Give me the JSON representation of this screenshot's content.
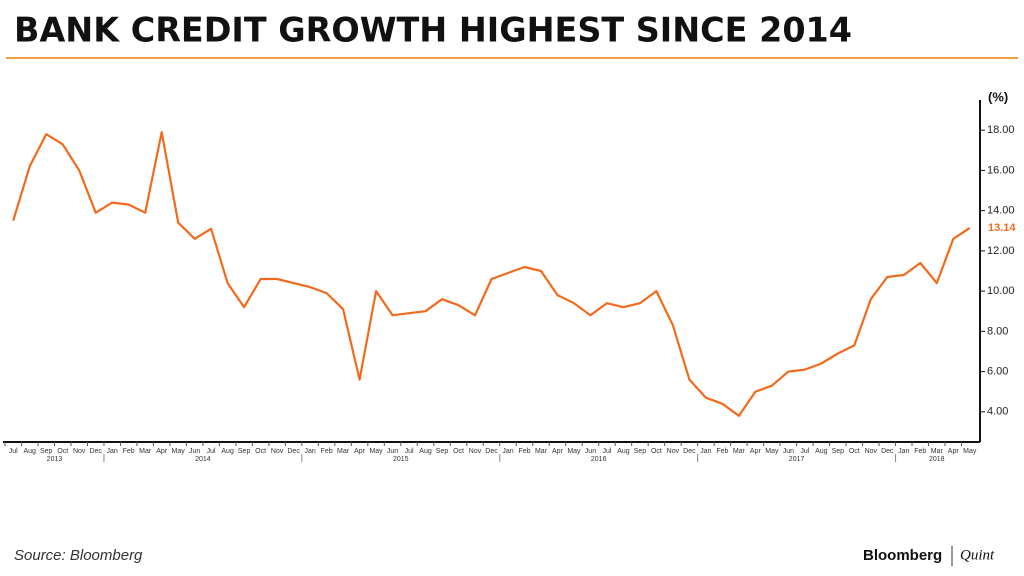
{
  "header": {
    "title": "BANK CREDIT GROWTH HIGHEST SINCE 2014"
  },
  "chart_data": {
    "type": "line",
    "y_label": "(%)",
    "categories": [
      "Jul",
      "Aug",
      "Sep",
      "Oct",
      "Nov",
      "Dec",
      "Jan",
      "Feb",
      "Mar",
      "Apr",
      "May",
      "Jun",
      "Jul",
      "Aug",
      "Sep",
      "Oct",
      "Nov",
      "Dec",
      "Jan",
      "Feb",
      "Mar",
      "Apr",
      "May",
      "Jun",
      "Jul",
      "Aug",
      "Sep",
      "Oct",
      "Nov",
      "Dec",
      "Jan",
      "Feb",
      "Mar",
      "Apr",
      "May",
      "Jun",
      "Jul",
      "Aug",
      "Sep",
      "Oct",
      "Nov",
      "Dec",
      "Jan",
      "Feb",
      "Mar",
      "Apr",
      "May",
      "Jun",
      "Jul",
      "Aug",
      "Sep",
      "Oct",
      "Nov",
      "Dec",
      "Jan",
      "Feb",
      "Mar",
      "Apr",
      "May"
    ],
    "years": [
      "2013",
      "2014",
      "2015",
      "2016",
      "2017",
      "2018"
    ],
    "values": [
      13.5,
      16.2,
      17.8,
      17.3,
      16.0,
      13.9,
      14.4,
      14.3,
      13.9,
      17.9,
      13.4,
      12.6,
      13.1,
      10.4,
      9.2,
      10.6,
      10.6,
      10.4,
      10.2,
      9.9,
      9.1,
      5.6,
      10.0,
      8.8,
      8.9,
      9.0,
      9.6,
      9.3,
      8.8,
      10.6,
      10.9,
      11.2,
      11.0,
      9.8,
      9.4,
      8.8,
      9.4,
      9.2,
      9.4,
      10.0,
      8.3,
      5.6,
      4.7,
      4.4,
      3.8,
      5.0,
      5.3,
      6.0,
      6.1,
      6.4,
      6.9,
      7.3,
      9.6,
      10.7,
      10.8,
      11.4,
      10.4,
      12.6,
      13.14
    ],
    "color": "#f26b1d",
    "ylim": [
      2.5,
      19.5
    ],
    "yticks": [
      {
        "value": 4,
        "label": "4.00"
      },
      {
        "value": 6,
        "label": "6.00"
      },
      {
        "value": 8,
        "label": "8.00"
      },
      {
        "value": 10,
        "label": "10.00"
      },
      {
        "value": 12,
        "label": "12.00"
      },
      {
        "value": 14,
        "label": "14.00"
      },
      {
        "value": 16,
        "label": "16.00"
      },
      {
        "value": 18,
        "label": "18.00"
      }
    ]
  },
  "footer": {
    "source": "Source: Bloomberg",
    "brand": "Bloomberg",
    "brand2": "Quint"
  }
}
